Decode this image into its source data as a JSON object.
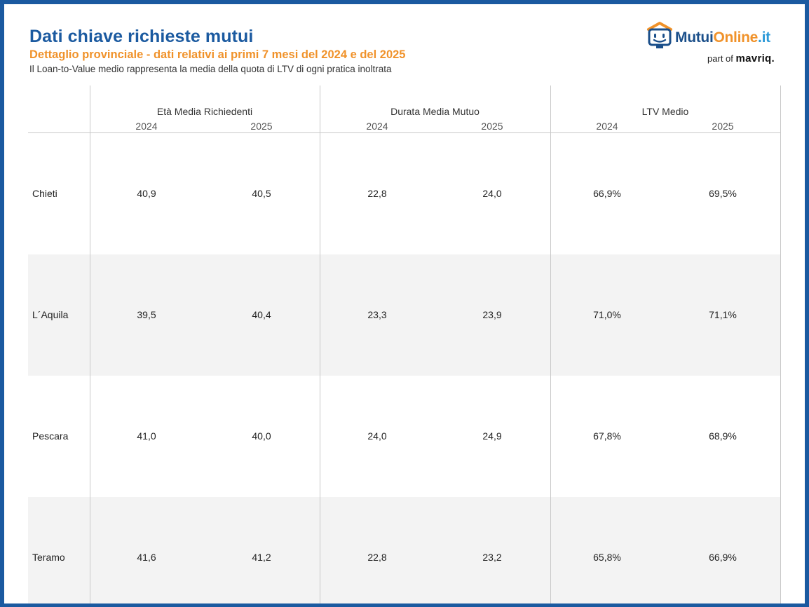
{
  "header": {
    "title": "Dati chiave richieste mutui",
    "subtitle": "Dettaglio provinciale - dati relativi ai primi 7 mesi del 2024 e del 2025",
    "note": "Il Loan-to-Value medio rappresenta la media della quota di LTV di ogni pratica inoltrata"
  },
  "logo": {
    "part1": "Mutui",
    "part2": "Online",
    "part3": ".it",
    "tagline_prefix": "part of",
    "tagline_brand": "mavriq."
  },
  "colors": {
    "brand_blue": "#1b5aa0",
    "accent_orange": "#f0922a",
    "row_shade": "#f3f3f3"
  },
  "table": {
    "groups": [
      "Età Media Richiedenti",
      "Durata Media Mutuo",
      "LTV Medio"
    ],
    "years": [
      "2024",
      "2025"
    ],
    "rows": [
      {
        "province": "Chieti",
        "values": [
          "40,9",
          "40,5",
          "22,8",
          "24,0",
          "66,9%",
          "69,5%"
        ]
      },
      {
        "province": "L´Aquila",
        "values": [
          "39,5",
          "40,4",
          "23,3",
          "23,9",
          "71,0%",
          "71,1%"
        ]
      },
      {
        "province": "Pescara",
        "values": [
          "41,0",
          "40,0",
          "24,0",
          "24,9",
          "67,8%",
          "68,9%"
        ]
      },
      {
        "province": "Teramo",
        "values": [
          "41,6",
          "41,2",
          "22,8",
          "23,2",
          "65,8%",
          "66,9%"
        ]
      }
    ]
  }
}
